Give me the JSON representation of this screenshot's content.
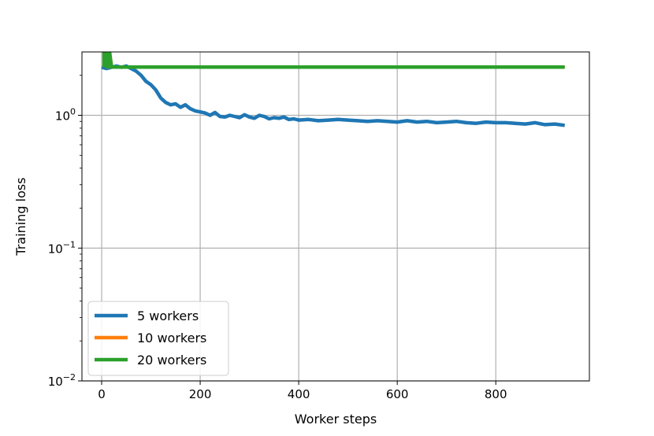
{
  "chart_data": {
    "type": "line",
    "title": "",
    "xlabel": "Worker steps",
    "ylabel": "Training loss",
    "xlim": [
      -40,
      990
    ],
    "ylim": [
      0.01,
      3.0
    ],
    "yscale": "log",
    "grid": true,
    "legend_position": "lower-left",
    "x_ticks": [
      {
        "value": 0,
        "label": "0"
      },
      {
        "value": 200,
        "label": "200"
      },
      {
        "value": 400,
        "label": "400"
      },
      {
        "value": 600,
        "label": "600"
      },
      {
        "value": 800,
        "label": "800"
      }
    ],
    "y_ticks": [
      {
        "value": 1,
        "base": "10",
        "exp": "0"
      },
      {
        "value": 0.1,
        "base": "10",
        "exp": "−1"
      },
      {
        "value": 0.01,
        "base": "10",
        "exp": "−2"
      }
    ],
    "series": [
      {
        "name": "5 workers",
        "color": "#1f77b4",
        "x": [
          0,
          10,
          20,
          30,
          40,
          50,
          60,
          70,
          80,
          90,
          100,
          110,
          120,
          130,
          140,
          150,
          160,
          170,
          180,
          190,
          200,
          210,
          220,
          230,
          240,
          250,
          260,
          270,
          280,
          290,
          300,
          310,
          320,
          330,
          340,
          350,
          360,
          370,
          380,
          390,
          400,
          420,
          440,
          460,
          480,
          500,
          520,
          540,
          560,
          580,
          600,
          620,
          640,
          660,
          680,
          700,
          720,
          740,
          760,
          780,
          800,
          820,
          840,
          860,
          880,
          900,
          920,
          940
        ],
        "y": [
          2.3,
          2.25,
          2.3,
          2.35,
          2.3,
          2.35,
          2.25,
          2.15,
          2.0,
          1.8,
          1.7,
          1.55,
          1.35,
          1.25,
          1.2,
          1.22,
          1.15,
          1.2,
          1.12,
          1.08,
          1.06,
          1.04,
          1.0,
          1.05,
          0.98,
          0.97,
          1.0,
          0.98,
          0.96,
          1.01,
          0.97,
          0.95,
          1.0,
          0.98,
          0.94,
          0.96,
          0.95,
          0.97,
          0.93,
          0.94,
          0.92,
          0.93,
          0.91,
          0.92,
          0.93,
          0.92,
          0.91,
          0.9,
          0.91,
          0.9,
          0.89,
          0.91,
          0.89,
          0.9,
          0.88,
          0.89,
          0.9,
          0.88,
          0.87,
          0.89,
          0.88,
          0.88,
          0.87,
          0.86,
          0.88,
          0.85,
          0.86,
          0.84
        ]
      },
      {
        "name": "10 workers",
        "color": "#ff7f0e",
        "x": [
          5,
          5,
          8,
          12,
          16,
          20,
          30,
          100,
          200,
          300,
          400,
          500,
          600,
          700,
          800,
          900,
          940
        ],
        "y": [
          2.3,
          3.0,
          3.0,
          2.3,
          3.0,
          2.31,
          2.31,
          2.31,
          2.31,
          2.31,
          2.31,
          2.31,
          2.31,
          2.31,
          2.31,
          2.31,
          2.31
        ]
      },
      {
        "name": "20 workers",
        "color": "#2ca02c",
        "x": [
          5,
          5,
          8,
          12,
          16,
          20,
          30,
          100,
          200,
          300,
          400,
          500,
          600,
          700,
          800,
          900,
          940
        ],
        "y": [
          2.3,
          3.0,
          3.0,
          2.3,
          3.0,
          2.31,
          2.31,
          2.31,
          2.31,
          2.31,
          2.31,
          2.31,
          2.31,
          2.31,
          2.31,
          2.31,
          2.31
        ]
      }
    ]
  }
}
